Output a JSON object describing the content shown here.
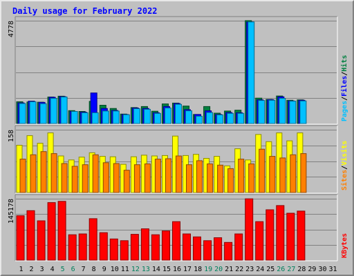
{
  "title": "Daily usage for February 2022",
  "colors": {
    "background": "#c0c0c0",
    "title": "#0000ff",
    "pages": "#00c0ff",
    "files": "#0000ff",
    "hits": "#008040",
    "sites": "#ff8000",
    "visits": "#ffff00",
    "kbytes": "#ff0000",
    "weekend_day": "#00805c"
  },
  "chart_data": [
    {
      "type": "bar",
      "categories": [
        "1",
        "2",
        "3",
        "4",
        "5",
        "6",
        "7",
        "8",
        "9",
        "10",
        "11",
        "12",
        "13",
        "14",
        "15",
        "16",
        "17",
        "18",
        "19",
        "20",
        "21",
        "22",
        "23",
        "24",
        "25",
        "26",
        "27",
        "28",
        "29",
        "30",
        "31"
      ],
      "weekend_days": [
        "5",
        "6",
        "12",
        "13",
        "19",
        "20",
        "26",
        "27"
      ],
      "series": [
        {
          "name": "Hits",
          "values": [
            1010,
            1000,
            990,
            1230,
            1270,
            600,
            560,
            1030,
            850,
            700,
            440,
            740,
            790,
            570,
            910,
            950,
            810,
            420,
            790,
            480,
            580,
            620,
            4780,
            1180,
            1120,
            1280,
            1080,
            1100,
            null,
            null,
            null
          ]
        },
        {
          "name": "Files",
          "values": [
            960,
            1040,
            980,
            1220,
            1250,
            560,
            530,
            1420,
            700,
            610,
            420,
            720,
            700,
            500,
            790,
            930,
            640,
            420,
            590,
            420,
            510,
            500,
            4720,
            1100,
            1110,
            1240,
            1050,
            1080,
            null,
            null,
            null
          ]
        },
        {
          "name": "Pages",
          "values": [
            930,
            1010,
            920,
            1170,
            1230,
            560,
            500,
            500,
            580,
            580,
            410,
            690,
            660,
            470,
            720,
            890,
            590,
            340,
            510,
            400,
            470,
            470,
            4720,
            1070,
            1080,
            1170,
            1040,
            1050,
            null,
            null,
            null
          ]
        }
      ],
      "ylabel_parts": [
        "Pages",
        "Files",
        "Hits"
      ],
      "ylim": [
        0,
        4778
      ],
      "ytick": "4778"
    },
    {
      "type": "bar",
      "categories": [
        "1",
        "2",
        "3",
        "4",
        "5",
        "6",
        "7",
        "8",
        "9",
        "10",
        "11",
        "12",
        "13",
        "14",
        "15",
        "16",
        "17",
        "18",
        "19",
        "20",
        "21",
        "22",
        "23",
        "24",
        "25",
        "26",
        "27",
        "28",
        "29",
        "30",
        "31"
      ],
      "series": [
        {
          "name": "Visits",
          "values": [
            119,
            143,
            124,
            150,
            92,
            82,
            89,
            100,
            91,
            90,
            71,
            90,
            94,
            92,
            93,
            142,
            93,
            96,
            86,
            91,
            67,
            110,
            82,
            146,
            128,
            150,
            130,
            150,
            null,
            null,
            null
          ]
        },
        {
          "name": "Sites",
          "values": [
            84,
            95,
            103,
            98,
            73,
            66,
            70,
            95,
            75,
            73,
            56,
            70,
            72,
            84,
            85,
            92,
            70,
            80,
            72,
            69,
            60,
            84,
            72,
            109,
            91,
            87,
            95,
            98,
            null,
            null,
            null
          ]
        }
      ],
      "ylabel_parts": [
        "Sites",
        "Visits"
      ],
      "ylim": [
        0,
        158
      ],
      "ytick": "158"
    },
    {
      "type": "bar",
      "categories": [
        "1",
        "2",
        "3",
        "4",
        "5",
        "6",
        "7",
        "8",
        "9",
        "10",
        "11",
        "12",
        "13",
        "14",
        "15",
        "16",
        "17",
        "18",
        "19",
        "20",
        "21",
        "22",
        "23",
        "24",
        "25",
        "26",
        "27",
        "28",
        "29",
        "30",
        "31"
      ],
      "series": [
        {
          "name": "KBytes",
          "values": [
            105000,
            117000,
            93000,
            136000,
            139000,
            60000,
            62000,
            98000,
            65000,
            50000,
            46000,
            61000,
            74000,
            60000,
            69000,
            91000,
            62000,
            55000,
            46000,
            53000,
            42000,
            62000,
            145000,
            91000,
            119000,
            129000,
            111000,
            116000,
            null,
            null,
            null
          ]
        }
      ],
      "ylabel_parts": [
        "KBytes"
      ],
      "ylim": [
        0,
        145178
      ],
      "ytick": "145178"
    }
  ]
}
